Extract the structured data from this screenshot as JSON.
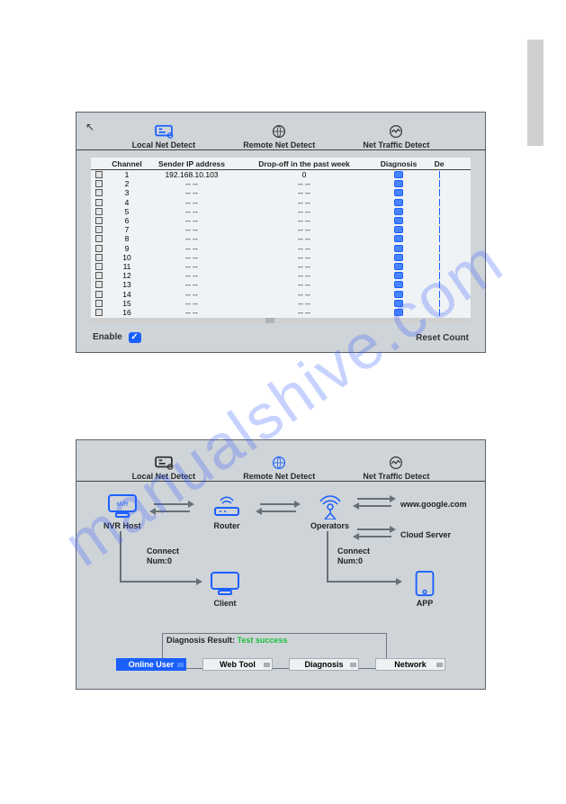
{
  "watermark": "manualshive.com",
  "tabs": {
    "local": "Local Net Detect",
    "remote": "Remote Net Detect",
    "traffic": "Net Traffic Detect"
  },
  "shot1": {
    "headers": {
      "channel": "Channel",
      "sender": "Sender IP address",
      "dropoff": "Drop-off in the past week",
      "diagnosis": "Diagnosis",
      "del": "De"
    },
    "rows": [
      {
        "ch": "1",
        "ip": "192.168.10.103",
        "drop": "0"
      },
      {
        "ch": "2",
        "ip": "-- --",
        "drop": "-- --"
      },
      {
        "ch": "3",
        "ip": "-- --",
        "drop": "-- --"
      },
      {
        "ch": "4",
        "ip": "-- --",
        "drop": "-- --"
      },
      {
        "ch": "5",
        "ip": "-- --",
        "drop": "-- --"
      },
      {
        "ch": "6",
        "ip": "-- --",
        "drop": "-- --"
      },
      {
        "ch": "7",
        "ip": "-- --",
        "drop": "-- --"
      },
      {
        "ch": "8",
        "ip": "-- --",
        "drop": "-- --"
      },
      {
        "ch": "9",
        "ip": "-- --",
        "drop": "-- --"
      },
      {
        "ch": "10",
        "ip": "-- --",
        "drop": "-- --"
      },
      {
        "ch": "11",
        "ip": "-- --",
        "drop": "-- --"
      },
      {
        "ch": "12",
        "ip": "-- --",
        "drop": "-- --"
      },
      {
        "ch": "13",
        "ip": "-- --",
        "drop": "-- --"
      },
      {
        "ch": "14",
        "ip": "-- --",
        "drop": "-- --"
      },
      {
        "ch": "15",
        "ip": "-- --",
        "drop": "-- --"
      },
      {
        "ch": "16",
        "ip": "-- --",
        "drop": "-- --"
      }
    ],
    "enable_label": "Enable",
    "enable_checked": true,
    "reset_label": "Reset Count"
  },
  "shot2": {
    "nodes": {
      "nvr": "NVR Host",
      "router": "Router",
      "operators": "Operators",
      "client": "Client",
      "app": "APP",
      "google": "www.google.com",
      "cloud": "Cloud Server"
    },
    "connect_label": "Connect",
    "num_label": "Num:0",
    "diag_result_label": "Diagnosis Result:",
    "diag_result_value": "Test success",
    "buttons": {
      "online": "Online User",
      "webtool": "Web Tool",
      "diagnosis": "Diagnosis",
      "network": "Network"
    }
  },
  "colors": {
    "accent": "#1b5fff",
    "panel_bg": "#cfd4d8",
    "line": "#68707a",
    "success": "#1cc03c"
  }
}
